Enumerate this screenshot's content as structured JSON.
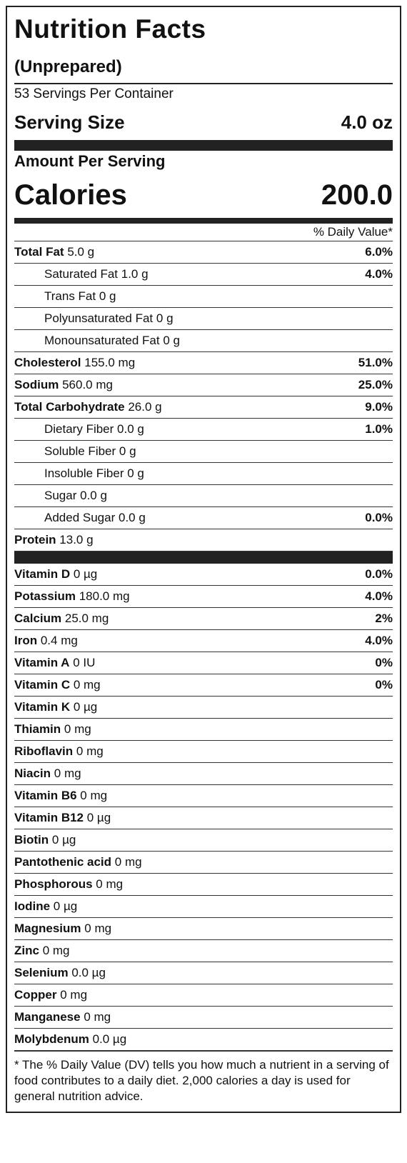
{
  "header": {
    "title": "Nutrition Facts",
    "subtitle": "(Unprepared)",
    "servings": "53 Servings Per Container",
    "serving_size_label": "Serving Size",
    "serving_size_value": "4.0 oz",
    "amount_per_serving": "Amount Per Serving",
    "calories_label": "Calories",
    "calories_value": "200.0",
    "daily_value_header": "% Daily Value*"
  },
  "nutrients": [
    {
      "name": "Total Fat",
      "amount": "5.0 g",
      "dv": "6.0%",
      "sub": [
        {
          "name": "Saturated Fat",
          "amount": "1.0 g",
          "dv": "4.0%"
        },
        {
          "name": "Trans Fat",
          "amount": "0 g"
        },
        {
          "name": "Polyunsaturated Fat",
          "amount": "0 g"
        },
        {
          "name": "Monounsaturated Fat",
          "amount": "0 g"
        }
      ]
    },
    {
      "name": "Cholesterol",
      "amount": "155.0 mg",
      "dv": "51.0%"
    },
    {
      "name": "Sodium",
      "amount": "560.0 mg",
      "dv": "25.0%"
    },
    {
      "name": "Total Carbohydrate",
      "amount": "26.0 g",
      "dv": "9.0%",
      "sub": [
        {
          "name": "Dietary Fiber",
          "amount": "0.0 g",
          "dv": "1.0%"
        },
        {
          "name": "Soluble Fiber",
          "amount": "0 g"
        },
        {
          "name": "Insoluble Fiber",
          "amount": "0 g"
        },
        {
          "name": "Sugar",
          "amount": "0.0 g"
        },
        {
          "name": "Added Sugar",
          "amount": "0.0 g",
          "dv": "0.0%"
        }
      ]
    },
    {
      "name": "Protein",
      "amount": "13.0 g"
    }
  ],
  "vitamins": [
    {
      "name": "Vitamin D",
      "amount": "0 µg",
      "dv": "0.0%"
    },
    {
      "name": "Potassium",
      "amount": "180.0 mg",
      "dv": "4.0%"
    },
    {
      "name": "Calcium",
      "amount": "25.0 mg",
      "dv": "2%"
    },
    {
      "name": "Iron",
      "amount": "0.4 mg",
      "dv": "4.0%"
    },
    {
      "name": "Vitamin A",
      "amount": "0 IU",
      "dv": "0%"
    },
    {
      "name": "Vitamin C",
      "amount": "0 mg",
      "dv": "0%"
    },
    {
      "name": "Vitamin K",
      "amount": "0 µg"
    },
    {
      "name": "Thiamin",
      "amount": "0 mg"
    },
    {
      "name": "Riboflavin",
      "amount": "0 mg"
    },
    {
      "name": "Niacin",
      "amount": "0 mg"
    },
    {
      "name": "Vitamin B6",
      "amount": "0 mg"
    },
    {
      "name": "Vitamin B12",
      "amount": "0 µg"
    },
    {
      "name": "Biotin",
      "amount": "0 µg"
    },
    {
      "name": "Pantothenic acid",
      "amount": "0 mg"
    },
    {
      "name": "Phosphorous",
      "amount": "0 mg"
    },
    {
      "name": "Iodine",
      "amount": "0 µg"
    },
    {
      "name": "Magnesium",
      "amount": "0 mg"
    },
    {
      "name": "Zinc",
      "amount": "0 mg"
    },
    {
      "name": "Selenium",
      "amount": "0.0 µg"
    },
    {
      "name": "Copper",
      "amount": "0 mg"
    },
    {
      "name": "Manganese",
      "amount": "0 mg"
    },
    {
      "name": "Molybdenum",
      "amount": "0.0 µg"
    }
  ],
  "footnote": "* The % Daily Value (DV) tells you how much a nutrient in a serving of food contributes to a daily diet. 2,000 calories a day is used for general nutrition advice."
}
